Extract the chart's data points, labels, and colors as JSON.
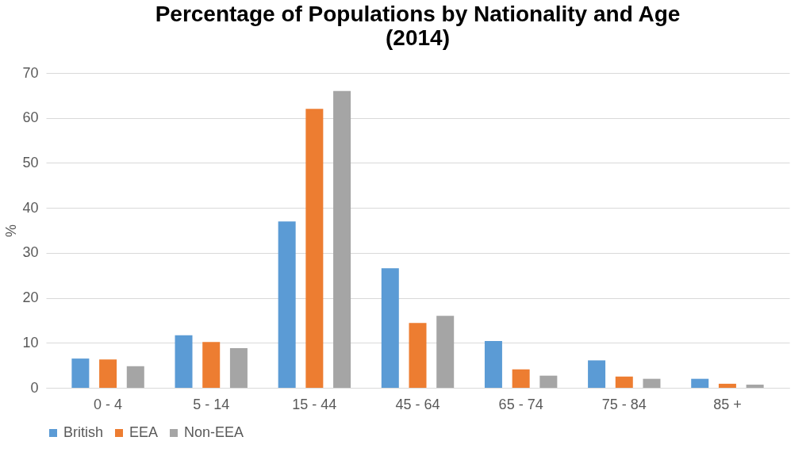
{
  "chart_data": {
    "type": "bar",
    "title": "Percentage of Populations by Nationality and Age (2014)",
    "ylabel": "%",
    "categories": [
      "0 - 4",
      "5 - 14",
      "15 - 44",
      "45 - 64",
      "65 - 74",
      "75 - 84",
      "85 +"
    ],
    "series": [
      {
        "name": "British",
        "color": "#5b9bd5",
        "values": [
          6.5,
          11.7,
          37,
          26.6,
          10.4,
          6.1,
          2.0
        ]
      },
      {
        "name": "EEA",
        "color": "#ed7d31",
        "values": [
          6.3,
          10.2,
          62,
          14.4,
          4.1,
          2.5,
          0.9
        ]
      },
      {
        "name": "Non-EEA",
        "color": "#a5a5a5",
        "values": [
          4.8,
          8.8,
          66,
          16.0,
          2.7,
          2.0,
          0.7
        ]
      }
    ],
    "ylim": [
      0,
      70
    ],
    "yticks": [
      0,
      10,
      20,
      30,
      40,
      50,
      60,
      70
    ],
    "grid": "y",
    "legend": "bottom"
  }
}
